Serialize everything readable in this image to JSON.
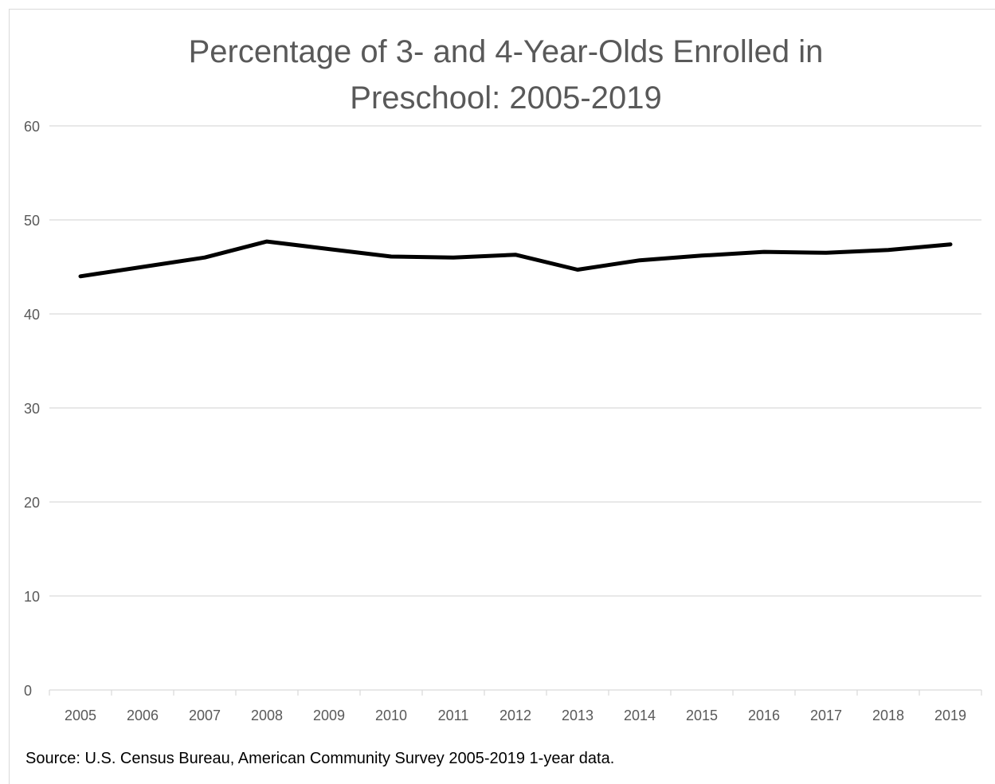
{
  "chart_data": {
    "type": "line",
    "title_lines": [
      "Percentage of 3- and 4-Year-Olds Enrolled in",
      "Preschool: 2005-2019"
    ],
    "categories": [
      "2005",
      "2006",
      "2007",
      "2008",
      "2009",
      "2010",
      "2011",
      "2012",
      "2013",
      "2014",
      "2015",
      "2016",
      "2017",
      "2018",
      "2019"
    ],
    "series": [
      {
        "values": [
          44.0,
          45.0,
          46.0,
          47.7,
          46.9,
          46.1,
          46.0,
          46.3,
          44.7,
          45.7,
          46.2,
          46.6,
          46.5,
          46.8,
          47.4
        ]
      }
    ],
    "ylim": [
      0,
      60
    ],
    "yticks": [
      "0",
      "10",
      "20",
      "30",
      "40",
      "50",
      "60"
    ],
    "grid": true,
    "legend": "none",
    "line_color": "#000000",
    "grid_color": "#d9d9d9",
    "text_color": "#595959"
  },
  "source_note": "Source: U.S. Census Bureau, American Community Survey 2005-2019 1-year data."
}
